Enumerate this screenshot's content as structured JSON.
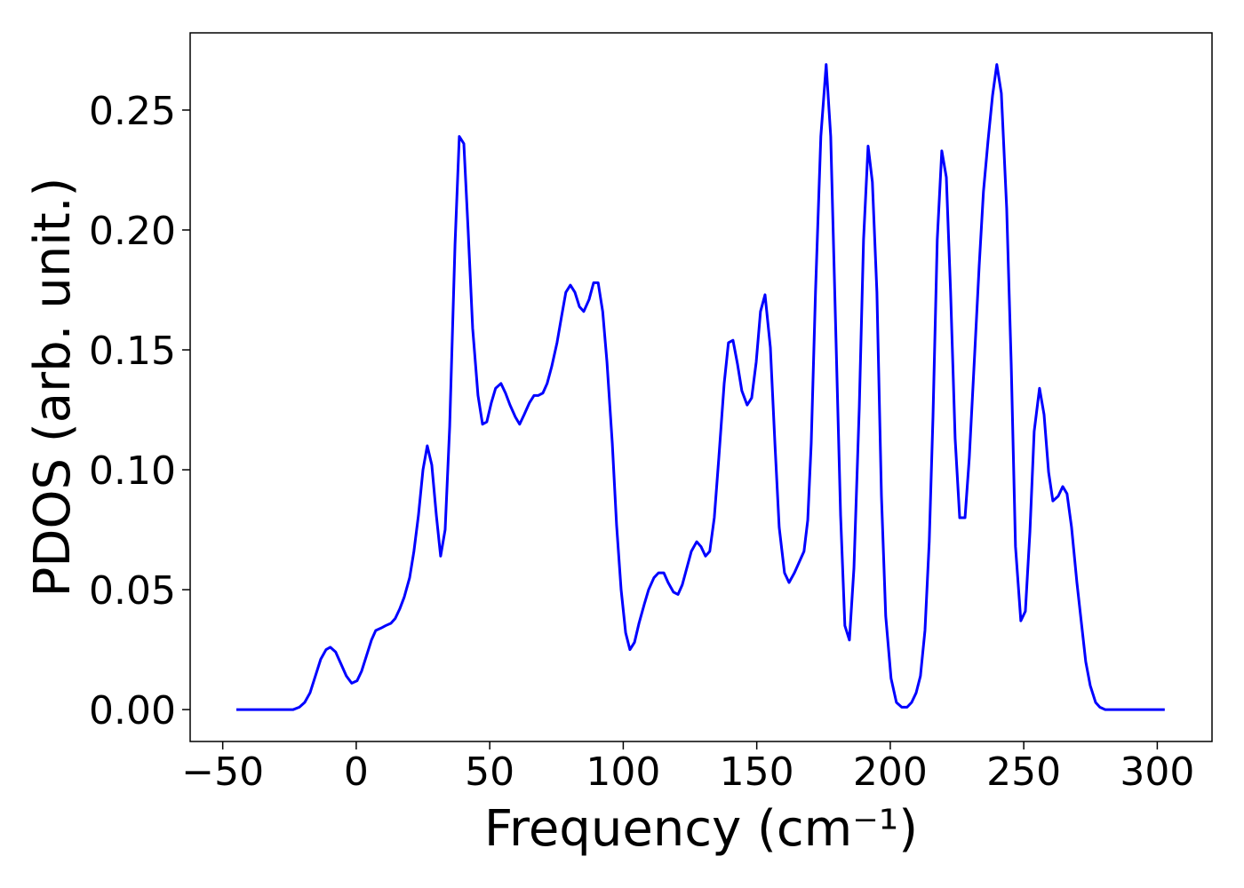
{
  "chart_data": {
    "type": "line",
    "xlabel": "Frequency (cm⁻¹)",
    "ylabel": "PDOS (arb. unit.)",
    "color": "#0000ff",
    "xlim": [
      -62.2,
      320.5
    ],
    "ylim": [
      -0.0133,
      0.2822
    ],
    "xticks": [
      {
        "value": -50,
        "label": "−50"
      },
      0,
      50,
      100,
      150,
      200,
      250,
      300
    ],
    "yticks": [
      {
        "value": 0,
        "label": "0.00"
      },
      {
        "value": 0.05,
        "label": "0.05"
      },
      {
        "value": 0.1,
        "label": "0.10"
      },
      {
        "value": 0.15,
        "label": "0.15"
      },
      {
        "value": 0.2,
        "label": "0.20"
      },
      {
        "value": 0.25,
        "label": "0.25"
      }
    ],
    "grid": false,
    "x": [
      -44.9,
      -23.6,
      -21.3,
      -19.3,
      -17.3,
      -15.3,
      -13.3,
      -11.3,
      -9.7,
      -7.7,
      -5.7,
      -3.7,
      -1.7,
      0.3,
      2.0,
      4.0,
      5.7,
      7.3,
      9.3,
      11.0,
      13.0,
      14.6,
      16.3,
      18.0,
      20.0,
      21.6,
      23.3,
      25.0,
      26.6,
      28.3,
      30.0,
      31.6,
      33.3,
      35.0,
      37.0,
      38.6,
      40.3,
      41.9,
      43.6,
      45.6,
      47.3,
      48.9,
      50.6,
      52.2,
      54.2,
      55.9,
      57.6,
      59.6,
      61.2,
      62.9,
      64.9,
      66.6,
      68.2,
      69.9,
      71.5,
      73.2,
      75.2,
      76.9,
      78.5,
      80.2,
      81.9,
      83.6,
      85.2,
      87.2,
      88.9,
      90.6,
      92.3,
      93.9,
      95.9,
      97.5,
      99.2,
      100.9,
      102.5,
      104.2,
      105.9,
      107.9,
      109.5,
      111.5,
      113.2,
      115.2,
      116.8,
      118.8,
      120.5,
      122.1,
      123.8,
      125.5,
      127.5,
      129.1,
      130.8,
      132.4,
      134.1,
      135.8,
      137.8,
      139.4,
      141.1,
      142.8,
      144.4,
      146.4,
      148.1,
      149.8,
      151.4,
      153.1,
      155.1,
      156.8,
      158.4,
      160.4,
      162.1,
      164.1,
      166.1,
      167.7,
      169.1,
      170.4,
      172.0,
      174.0,
      176.0,
      177.7,
      179.4,
      181.4,
      183.0,
      184.7,
      186.4,
      188.4,
      190.0,
      191.7,
      193.3,
      195.0,
      196.7,
      198.3,
      200.3,
      202.3,
      204.3,
      206.3,
      208.0,
      209.7,
      211.3,
      213.0,
      214.6,
      216.0,
      217.6,
      219.3,
      221.0,
      222.6,
      224.3,
      226.0,
      228.0,
      229.6,
      231.6,
      233.3,
      234.9,
      236.6,
      238.3,
      239.9,
      241.6,
      243.6,
      245.3,
      246.9,
      248.9,
      250.6,
      252.3,
      253.9,
      255.9,
      257.6,
      259.3,
      260.9,
      262.9,
      264.6,
      266.2,
      267.9,
      269.9,
      271.5,
      273.2,
      274.9,
      276.9,
      278.5,
      280.5,
      302.8
    ],
    "values": [
      0,
      0,
      0.001,
      0.003,
      0.007,
      0.014,
      0.021,
      0.025,
      0.026,
      0.024,
      0.019,
      0.014,
      0.011,
      0.012,
      0.016,
      0.023,
      0.029,
      0.033,
      0.034,
      0.035,
      0.036,
      0.038,
      0.042,
      0.047,
      0.055,
      0.066,
      0.081,
      0.1,
      0.11,
      0.102,
      0.081,
      0.064,
      0.075,
      0.118,
      0.194,
      0.239,
      0.236,
      0.2,
      0.159,
      0.131,
      0.119,
      0.12,
      0.128,
      0.134,
      0.136,
      0.132,
      0.127,
      0.122,
      0.119,
      0.123,
      0.128,
      0.131,
      0.131,
      0.132,
      0.136,
      0.143,
      0.153,
      0.164,
      0.174,
      0.177,
      0.174,
      0.168,
      0.166,
      0.171,
      0.178,
      0.178,
      0.166,
      0.145,
      0.111,
      0.077,
      0.05,
      0.032,
      0.025,
      0.028,
      0.036,
      0.044,
      0.05,
      0.055,
      0.057,
      0.057,
      0.053,
      0.049,
      0.048,
      0.052,
      0.059,
      0.066,
      0.07,
      0.068,
      0.064,
      0.066,
      0.08,
      0.105,
      0.136,
      0.153,
      0.154,
      0.144,
      0.133,
      0.127,
      0.13,
      0.145,
      0.166,
      0.173,
      0.151,
      0.111,
      0.076,
      0.057,
      0.053,
      0.057,
      0.062,
      0.066,
      0.079,
      0.111,
      0.174,
      0.239,
      0.269,
      0.239,
      0.166,
      0.081,
      0.035,
      0.029,
      0.059,
      0.126,
      0.196,
      0.235,
      0.22,
      0.174,
      0.089,
      0.039,
      0.013,
      0.003,
      0.001,
      0.001,
      0.003,
      0.007,
      0.014,
      0.033,
      0.07,
      0.122,
      0.196,
      0.233,
      0.222,
      0.174,
      0.113,
      0.08,
      0.08,
      0.105,
      0.148,
      0.185,
      0.216,
      0.237,
      0.256,
      0.269,
      0.257,
      0.209,
      0.144,
      0.068,
      0.037,
      0.041,
      0.074,
      0.116,
      0.134,
      0.123,
      0.099,
      0.087,
      0.089,
      0.093,
      0.09,
      0.076,
      0.053,
      0.037,
      0.02,
      0.01,
      0.003,
      0.001,
      0,
      0
    ]
  }
}
